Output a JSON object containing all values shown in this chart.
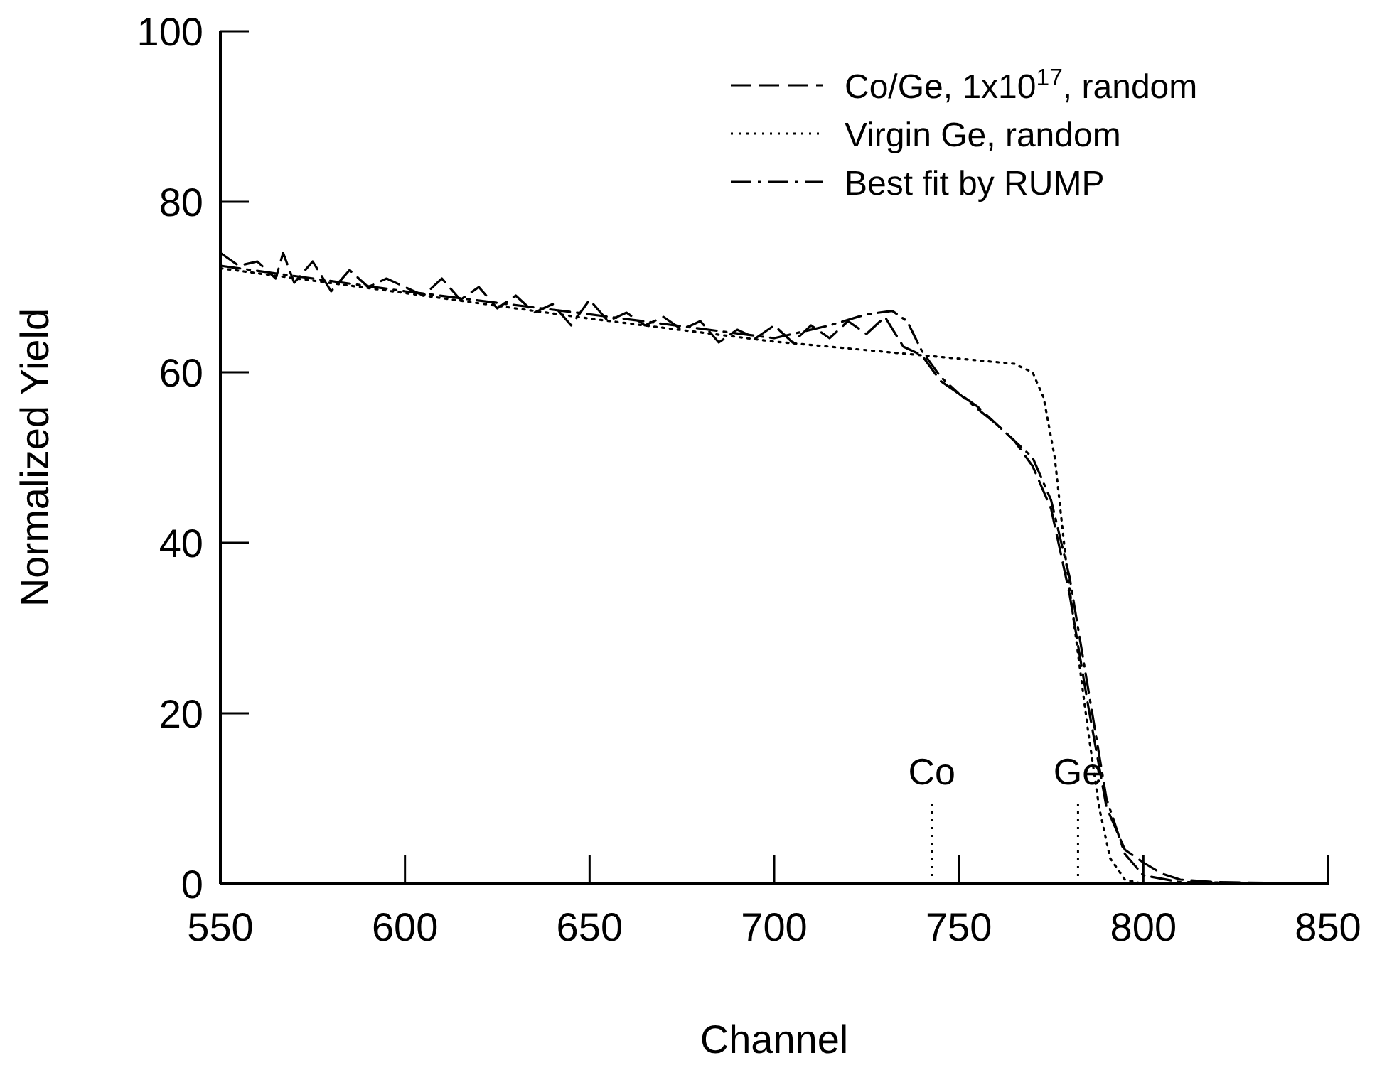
{
  "chart_data": {
    "type": "line",
    "xlabel": "Channel",
    "ylabel": "Normalized Yield",
    "xlim": [
      550,
      850
    ],
    "ylim": [
      0,
      100
    ],
    "xticks": [
      550,
      600,
      650,
      700,
      750,
      800,
      850
    ],
    "yticks": [
      0,
      20,
      40,
      60,
      80,
      100
    ],
    "grid": false,
    "legend": "top right",
    "series": [
      {
        "name": "Co/Ge, 1x10$^{17}$, random",
        "color": "#000000",
        "line_style": "dashed",
        "x": [
          550,
          555,
          560,
          565,
          567,
          570,
          575,
          580,
          585,
          590,
          595,
          600,
          605,
          610,
          615,
          620,
          625,
          630,
          635,
          640,
          645,
          650,
          655,
          660,
          665,
          670,
          675,
          680,
          685,
          690,
          695,
          700,
          705,
          710,
          715,
          720,
          725,
          730,
          735,
          740,
          745,
          750,
          755,
          760,
          765,
          770,
          775,
          780,
          785,
          790,
          795,
          800,
          805,
          810,
          820,
          850
        ],
        "values": [
          74,
          72.5,
          73,
          71,
          74,
          70.5,
          73,
          69.5,
          72,
          70,
          71,
          70,
          69,
          71,
          68.5,
          70,
          67.5,
          69,
          67,
          68,
          65.5,
          68.5,
          66,
          67,
          65.5,
          66.5,
          65,
          66,
          63.5,
          65,
          64,
          65.5,
          63.5,
          65.5,
          64,
          66,
          64.5,
          66.5,
          63,
          62,
          59,
          57.5,
          56,
          54,
          52,
          49,
          44,
          34,
          21,
          9,
          4,
          2.5,
          1.2,
          0.5,
          0.2,
          0
        ]
      },
      {
        "name": "Virgin Ge, random",
        "color": "#000000",
        "line_style": "dotted",
        "x": [
          550,
          600,
          650,
          700,
          740,
          765,
          770,
          773,
          776,
          779,
          782,
          785,
          788,
          791,
          795,
          800,
          840
        ],
        "values": [
          72.2,
          69.3,
          66.3,
          63.6,
          62,
          61,
          60,
          57,
          50,
          38,
          28,
          18,
          9,
          3,
          0.5,
          0,
          0
        ]
      },
      {
        "name": "Best fit by RUMP",
        "color": "#000000",
        "line_style": "dashdot",
        "x": [
          550,
          600,
          650,
          700,
          715,
          725,
          732,
          736,
          740,
          745,
          750,
          760,
          770,
          775,
          780,
          785,
          790,
          795,
          800,
          810,
          850
        ],
        "values": [
          72.5,
          69.5,
          66.8,
          64,
          65.5,
          66.8,
          67.2,
          66,
          62.5,
          59.5,
          57.5,
          54,
          50,
          45,
          36,
          23,
          10,
          3.5,
          1,
          0.2,
          0
        ]
      }
    ],
    "ref_lines": [
      {
        "axis": "x",
        "value": 742.7,
        "label": "Co",
        "line_style": "dotted"
      },
      {
        "axis": "x",
        "value": 782.3,
        "label": "Ge",
        "line_style": "dotted"
      }
    ]
  }
}
